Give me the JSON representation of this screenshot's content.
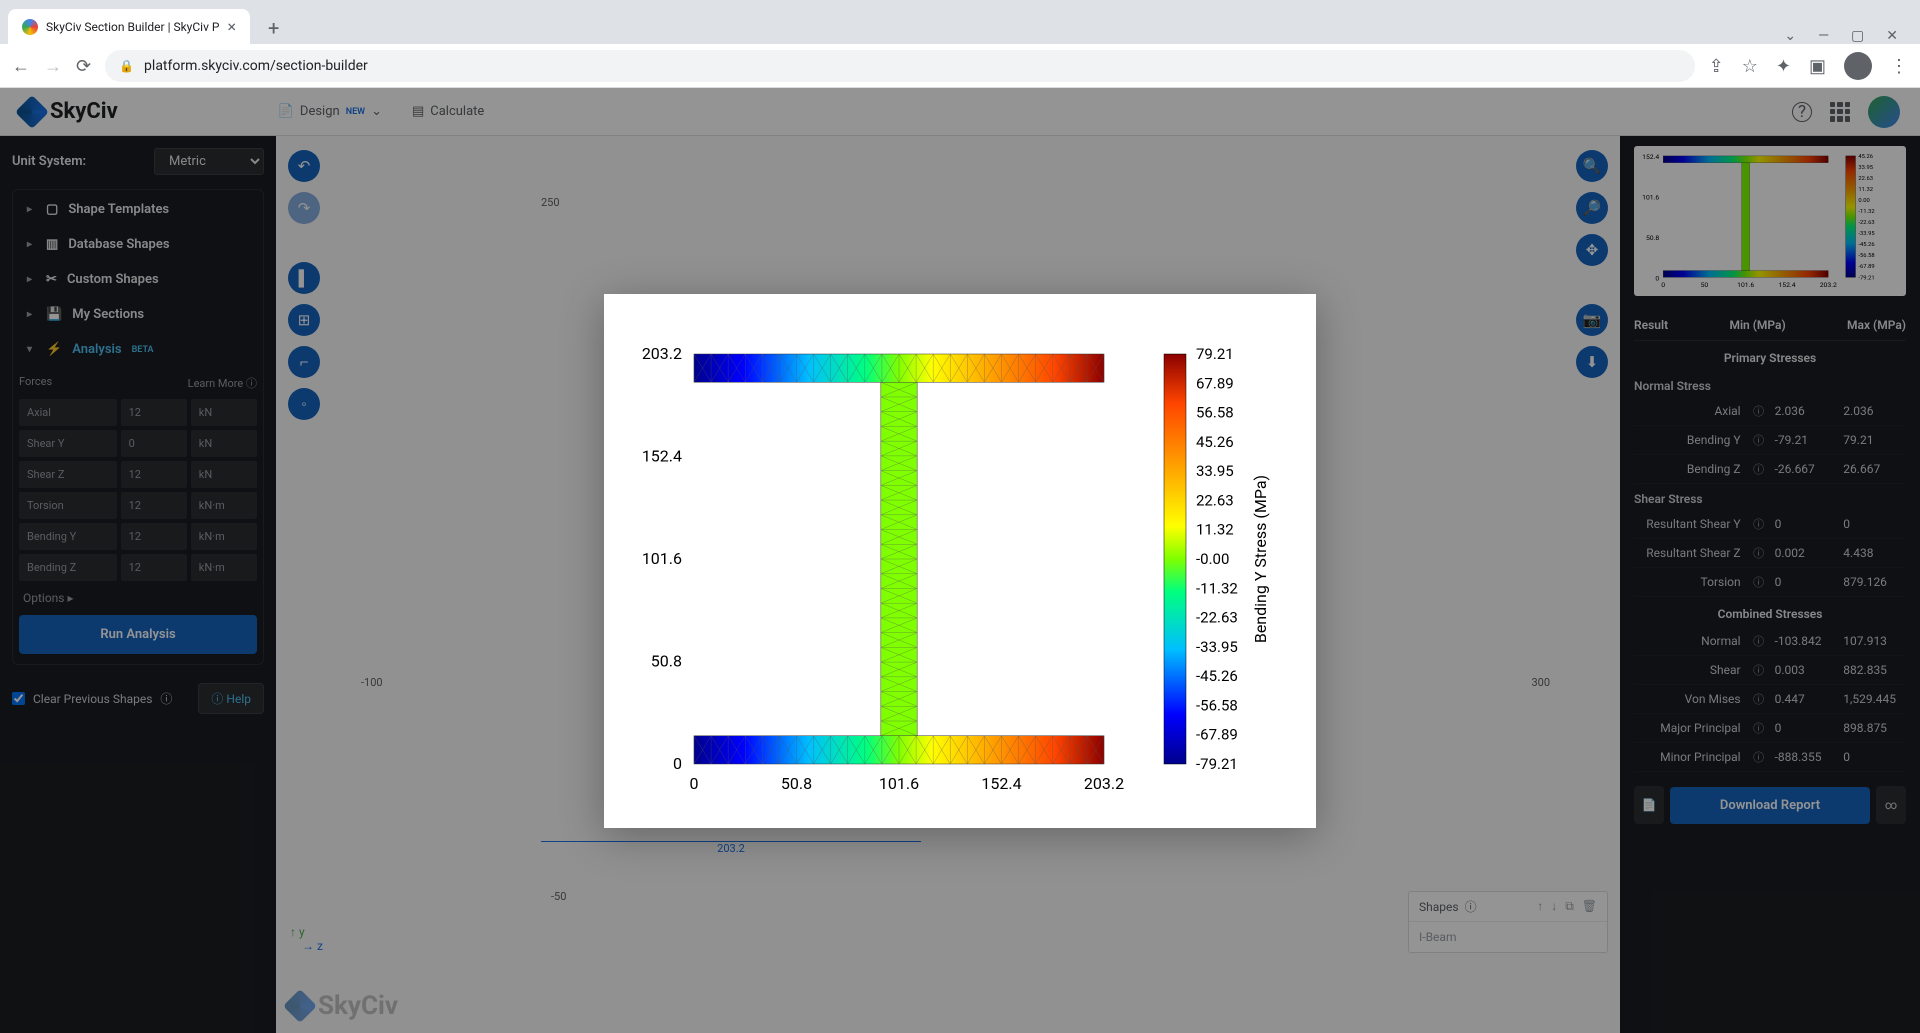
{
  "browser": {
    "tab_title": "SkyCiv Section Builder | SkyCiv P",
    "url": "platform.skyciv.com/section-builder"
  },
  "header": {
    "logo_text": "SkyCiv",
    "menu": {
      "design": "Design",
      "design_badge": "NEW",
      "calculate": "Calculate"
    }
  },
  "sidebar": {
    "unit_label": "Unit System:",
    "unit_value": "Metric",
    "items": [
      {
        "label": "Shape Templates",
        "icon": "▢"
      },
      {
        "label": "Database Shapes",
        "icon": "▥"
      },
      {
        "label": "Custom Shapes",
        "icon": "✂"
      },
      {
        "label": "My Sections",
        "icon": "💾"
      }
    ],
    "analysis_label": "Analysis",
    "analysis_badge": "BETA",
    "forces_label": "Forces",
    "learn_more": "Learn More",
    "forces": [
      {
        "name": "Axial",
        "value": "12",
        "unit": "kN"
      },
      {
        "name": "Shear Y",
        "value": "0",
        "unit": "kN"
      },
      {
        "name": "Shear Z",
        "value": "12",
        "unit": "kN"
      },
      {
        "name": "Torsion",
        "value": "12",
        "unit": "kN·m"
      },
      {
        "name": "Bending Y",
        "value": "12",
        "unit": "kN·m"
      },
      {
        "name": "Bending Z",
        "value": "12",
        "unit": "kN·m"
      }
    ],
    "options": "Options ▸",
    "run_button": "Run Analysis",
    "clear_shapes": "Clear Previous Shapes",
    "help": "Help"
  },
  "canvas": {
    "grid_labels": {
      "y_top": "250",
      "x_left": "-100",
      "x_right": "300",
      "y_bottom": "-50"
    },
    "dim_label": "203.2",
    "shapes_panel": {
      "title": "Shapes",
      "item": "I-Beam"
    },
    "axis": {
      "y": "y",
      "z": "z"
    },
    "logo": "SkyCiv"
  },
  "chart": {
    "y_axis_ticks": [
      "203.2",
      "152.4",
      "101.6",
      "50.8",
      "0"
    ],
    "x_axis_ticks": [
      "0",
      "50.8",
      "101.6",
      "152.4",
      "203.2"
    ],
    "colorbar_title": "Bending Y Stress (MPa)",
    "colorbar_ticks": [
      "79.21",
      "67.89",
      "56.58",
      "45.26",
      "33.95",
      "22.63",
      "11.32",
      "-0.00",
      "-11.32",
      "-22.63",
      "-33.95",
      "-45.26",
      "-56.58",
      "-67.89",
      "-79.21"
    ],
    "ibeam": {
      "width": 203.2,
      "height": 203.2,
      "flange_thickness": 14,
      "web_thickness": 18,
      "gradient_stops": [
        {
          "off": 0.0,
          "c": "#00008b"
        },
        {
          "off": 0.12,
          "c": "#0000ff"
        },
        {
          "off": 0.28,
          "c": "#00bfff"
        },
        {
          "off": 0.42,
          "c": "#00ff7f"
        },
        {
          "off": 0.5,
          "c": "#7fff00"
        },
        {
          "off": 0.58,
          "c": "#ffff00"
        },
        {
          "off": 0.72,
          "c": "#ffa500"
        },
        {
          "off": 0.88,
          "c": "#ff4500"
        },
        {
          "off": 1.0,
          "c": "#8b0000"
        }
      ]
    },
    "mini_colorbar_ticks": [
      "45.26",
      "33.95",
      "22.63",
      "11.32",
      "0.00",
      "-11.32",
      "-22.63",
      "-33.95",
      "-45.26",
      "-56.58",
      "-67.89",
      "-79.21"
    ],
    "mini_x_ticks": [
      "0",
      "50",
      "101.6",
      "152.4",
      "203.2"
    ],
    "mini_y_ticks": [
      "152.4",
      "101.6",
      "50.8",
      "0"
    ]
  },
  "results": {
    "header": {
      "result": "Result",
      "min": "Min (MPa)",
      "max": "Max (MPa)"
    },
    "primary_title": "Primary Stresses",
    "normal_sub": "Normal Stress",
    "normal_rows": [
      {
        "name": "Axial",
        "min": "2.036",
        "max": "2.036"
      },
      {
        "name": "Bending Y",
        "min": "-79.21",
        "max": "79.21"
      },
      {
        "name": "Bending Z",
        "min": "-26.667",
        "max": "26.667"
      }
    ],
    "shear_sub": "Shear Stress",
    "shear_rows": [
      {
        "name": "Resultant Shear Y",
        "min": "0",
        "max": "0"
      },
      {
        "name": "Resultant Shear Z",
        "min": "0.002",
        "max": "4.438"
      },
      {
        "name": "Torsion",
        "min": "0",
        "max": "879.126"
      }
    ],
    "combined_title": "Combined Stresses",
    "combined_rows": [
      {
        "name": "Normal",
        "min": "-103.842",
        "max": "107.913"
      },
      {
        "name": "Shear",
        "min": "0.003",
        "max": "882.835"
      },
      {
        "name": "Von Mises",
        "min": "0.447",
        "max": "1,529.445"
      },
      {
        "name": "Major Principal",
        "min": "0",
        "max": "898.875"
      },
      {
        "name": "Minor Principal",
        "min": "-888.355",
        "max": "0"
      }
    ],
    "download": "Download Report"
  }
}
